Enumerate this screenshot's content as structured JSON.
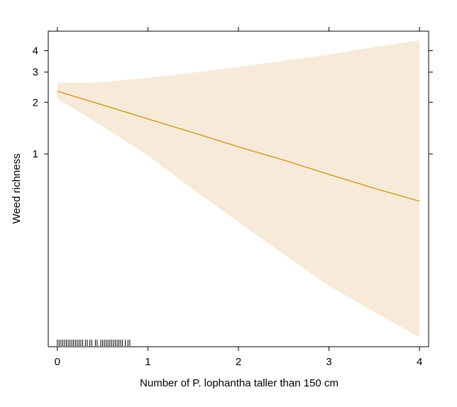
{
  "chart_data": {
    "type": "line",
    "title": "",
    "xlabel": "Number of P. lophantha taller than 150 cm",
    "ylabel": "Weed richness",
    "y_scale": "log",
    "xlim": [
      -0.1,
      4.1
    ],
    "ylim": [
      0.075,
      5.2
    ],
    "x_ticks": [
      0,
      1,
      2,
      3,
      4
    ],
    "x_tick_labels": [
      "0",
      "1",
      "2",
      "3",
      "4"
    ],
    "y_ticks": [
      1,
      2,
      3,
      4
    ],
    "y_tick_labels": [
      "1",
      "2",
      "3",
      "4"
    ],
    "grid": false,
    "legend": "none",
    "line_color": "#cc8800",
    "band_color": "#f7ead8",
    "fit": {
      "x": [
        0,
        0.5,
        1,
        1.5,
        2,
        2.5,
        3,
        3.5,
        4
      ],
      "y": [
        2.32,
        1.93,
        1.6,
        1.33,
        1.1,
        0.92,
        0.76,
        0.63,
        0.53
      ]
    },
    "confidence_band": {
      "x": [
        0,
        0.5,
        1,
        1.5,
        2,
        2.5,
        3,
        3.5,
        4
      ],
      "lower": [
        2.1,
        1.45,
        0.98,
        0.62,
        0.4,
        0.26,
        0.17,
        0.12,
        0.085
      ],
      "upper": [
        2.6,
        2.62,
        2.78,
        2.98,
        3.22,
        3.5,
        3.8,
        4.2,
        4.6
      ]
    },
    "rug_x": [
      0.0,
      0.02,
      0.04,
      0.06,
      0.08,
      0.1,
      0.12,
      0.14,
      0.16,
      0.18,
      0.2,
      0.22,
      0.24,
      0.26,
      0.28,
      0.31,
      0.33,
      0.36,
      0.38,
      0.42,
      0.44,
      0.48,
      0.5,
      0.52,
      0.54,
      0.56,
      0.58,
      0.6,
      0.62,
      0.64,
      0.66,
      0.68,
      0.7,
      0.72,
      0.75,
      0.78,
      0.8
    ]
  }
}
